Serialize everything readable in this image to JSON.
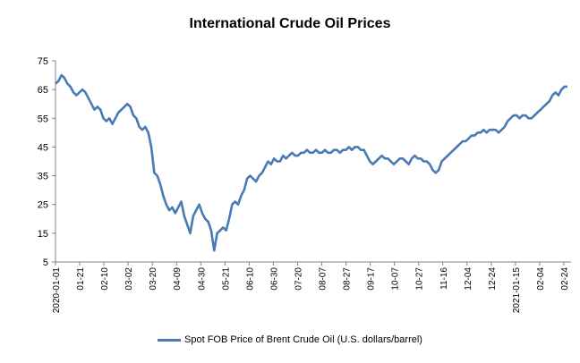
{
  "chart_data": {
    "type": "line",
    "title": "International Crude Oil Prices",
    "ylim": [
      5,
      75
    ],
    "yticks": [
      5,
      15,
      25,
      35,
      45,
      55,
      65,
      75
    ],
    "grid": false,
    "legend_position": "bottom",
    "x_tick_labels": [
      "2020-01-01",
      "01-21",
      "02-10",
      "03-02",
      "03-20",
      "04-09",
      "04-30",
      "05-21",
      "06-10",
      "06-30",
      "07-20",
      "08-07",
      "08-27",
      "09-17",
      "10-07",
      "10-27",
      "11-16",
      "12-04",
      "12-24",
      "2021-01-15",
      "02-04",
      "02-24"
    ],
    "series": [
      {
        "name": "Spot FOB Price of Brent Crude Oil (U.S. dollars/barrel)",
        "color": "#4a7ab5",
        "values": [
          67,
          68,
          70,
          69,
          67,
          66,
          64,
          63,
          64,
          65,
          64,
          62,
          60,
          58,
          59,
          58,
          55,
          54,
          55,
          53,
          55,
          57,
          58,
          59,
          60,
          59,
          56,
          55,
          52,
          51,
          52,
          50,
          45,
          36,
          35,
          32,
          28,
          25,
          23,
          24,
          22,
          24,
          26,
          21,
          18,
          15,
          21,
          23,
          25,
          22,
          20,
          19,
          16,
          9,
          15,
          16,
          17,
          16,
          20,
          25,
          26,
          25,
          28,
          30,
          34,
          35,
          34,
          33,
          35,
          36,
          38,
          40,
          39,
          41,
          40,
          40,
          42,
          41,
          42,
          43,
          42,
          42,
          43,
          43,
          44,
          43,
          43,
          44,
          43,
          43,
          44,
          43,
          43,
          44,
          44,
          43,
          44,
          44,
          45,
          44,
          45,
          45,
          44,
          44,
          42,
          40,
          39,
          40,
          41,
          42,
          41,
          41,
          40,
          39,
          40,
          41,
          41,
          40,
          39,
          41,
          42,
          41,
          41,
          40,
          40,
          39,
          37,
          36,
          37,
          40,
          41,
          42,
          43,
          44,
          45,
          46,
          47,
          47,
          48,
          49,
          49,
          50,
          50,
          51,
          50,
          51,
          51,
          51,
          50,
          51,
          52,
          54,
          55,
          56,
          56,
          55,
          56,
          56,
          55,
          55,
          56,
          57,
          58,
          59,
          60,
          61,
          63,
          64,
          63,
          65,
          66,
          66
        ]
      }
    ]
  },
  "legend": {
    "label": "Spot FOB Price of Brent Crude Oil (U.S. dollars/barrel)"
  }
}
